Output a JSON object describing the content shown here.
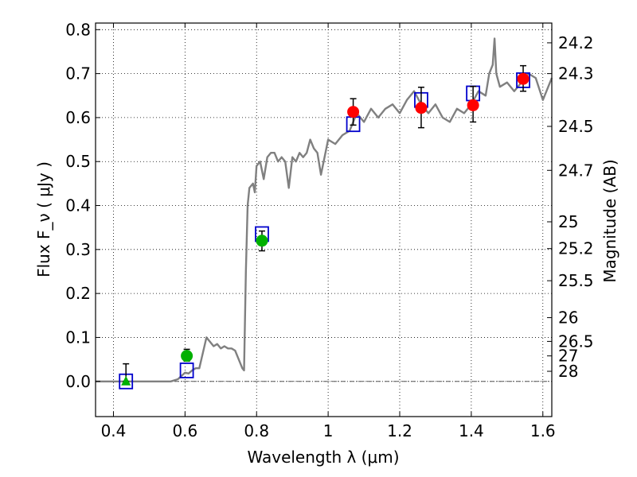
{
  "chart_data": {
    "type": "scatter",
    "xlabel": "Wavelength  λ (μm)",
    "ylabel": "Flux  F_ν  ( μJy )",
    "ylabel_right": "Magnitude (AB)",
    "xlim": [
      0.35,
      1.625
    ],
    "ylim": [
      -0.08,
      0.815
    ],
    "grid": true,
    "x_ticks": [
      0.4,
      0.6,
      0.8,
      1.0,
      1.2,
      1.4,
      1.6
    ],
    "x_tick_labels": [
      "0.4",
      "0.6",
      "0.8",
      "1",
      "1.2",
      "1.4",
      "1.6"
    ],
    "y_ticks": [
      0.0,
      0.1,
      0.2,
      0.3,
      0.4,
      0.5,
      0.6,
      0.7,
      0.8
    ],
    "y_tick_labels": [
      "0.0",
      "0.1",
      "0.2",
      "0.3",
      "0.4",
      "0.5",
      "0.6",
      "0.7",
      "0.8"
    ],
    "right_ticks": [
      {
        "label": "24.2",
        "flux": 0.77
      },
      {
        "label": "24.3",
        "flux": 0.7
      },
      {
        "label": "24.5",
        "flux": 0.58
      },
      {
        "label": "24.7",
        "flux": 0.48
      },
      {
        "label": "25",
        "flux": 0.363
      },
      {
        "label": "25.2",
        "flux": 0.302
      },
      {
        "label": "25.5",
        "flux": 0.229
      },
      {
        "label": "26",
        "flux": 0.145
      },
      {
        "label": "26.5",
        "flux": 0.091
      },
      {
        "label": "27",
        "flux": 0.058
      },
      {
        "label": "28",
        "flux": 0.023
      }
    ],
    "series": [
      {
        "kind": "line",
        "color": "#808080",
        "points": [
          [
            0.35,
            0.0
          ],
          [
            0.56,
            0.0
          ],
          [
            0.58,
            0.005
          ],
          [
            0.6,
            0.02
          ],
          [
            0.61,
            0.018
          ],
          [
            0.62,
            0.025
          ],
          [
            0.63,
            0.03
          ],
          [
            0.64,
            0.03
          ],
          [
            0.65,
            0.065
          ],
          [
            0.66,
            0.1
          ],
          [
            0.67,
            0.09
          ],
          [
            0.68,
            0.08
          ],
          [
            0.69,
            0.085
          ],
          [
            0.7,
            0.075
          ],
          [
            0.71,
            0.08
          ],
          [
            0.72,
            0.075
          ],
          [
            0.73,
            0.075
          ],
          [
            0.74,
            0.07
          ],
          [
            0.75,
            0.05
          ],
          [
            0.76,
            0.03
          ],
          [
            0.765,
            0.025
          ],
          [
            0.77,
            0.25
          ],
          [
            0.775,
            0.4
          ],
          [
            0.78,
            0.44
          ],
          [
            0.79,
            0.45
          ],
          [
            0.795,
            0.43
          ],
          [
            0.8,
            0.49
          ],
          [
            0.81,
            0.5
          ],
          [
            0.82,
            0.46
          ],
          [
            0.83,
            0.51
          ],
          [
            0.84,
            0.52
          ],
          [
            0.85,
            0.52
          ],
          [
            0.86,
            0.5
          ],
          [
            0.87,
            0.51
          ],
          [
            0.88,
            0.5
          ],
          [
            0.89,
            0.44
          ],
          [
            0.9,
            0.51
          ],
          [
            0.91,
            0.5
          ],
          [
            0.92,
            0.52
          ],
          [
            0.93,
            0.51
          ],
          [
            0.94,
            0.52
          ],
          [
            0.95,
            0.55
          ],
          [
            0.96,
            0.53
          ],
          [
            0.97,
            0.52
          ],
          [
            0.98,
            0.47
          ],
          [
            0.99,
            0.51
          ],
          [
            1.0,
            0.55
          ],
          [
            1.02,
            0.54
          ],
          [
            1.04,
            0.56
          ],
          [
            1.06,
            0.57
          ],
          [
            1.07,
            0.59
          ],
          [
            1.08,
            0.61
          ],
          [
            1.1,
            0.59
          ],
          [
            1.12,
            0.62
          ],
          [
            1.14,
            0.6
          ],
          [
            1.16,
            0.62
          ],
          [
            1.18,
            0.63
          ],
          [
            1.2,
            0.61
          ],
          [
            1.22,
            0.64
          ],
          [
            1.24,
            0.66
          ],
          [
            1.26,
            0.63
          ],
          [
            1.28,
            0.61
          ],
          [
            1.3,
            0.63
          ],
          [
            1.32,
            0.6
          ],
          [
            1.34,
            0.59
          ],
          [
            1.36,
            0.62
          ],
          [
            1.38,
            0.61
          ],
          [
            1.4,
            0.63
          ],
          [
            1.42,
            0.66
          ],
          [
            1.44,
            0.65
          ],
          [
            1.45,
            0.7
          ],
          [
            1.46,
            0.72
          ],
          [
            1.465,
            0.78
          ],
          [
            1.47,
            0.7
          ],
          [
            1.48,
            0.67
          ],
          [
            1.5,
            0.68
          ],
          [
            1.52,
            0.66
          ],
          [
            1.54,
            0.68
          ],
          [
            1.56,
            0.7
          ],
          [
            1.58,
            0.69
          ],
          [
            1.6,
            0.64
          ],
          [
            1.625,
            0.69
          ]
        ]
      },
      {
        "kind": "open-square",
        "color": "#0000cc",
        "points": [
          [
            0.435,
            0.0
          ],
          [
            0.605,
            0.025
          ],
          [
            0.815,
            0.335
          ],
          [
            1.07,
            0.585
          ],
          [
            1.26,
            0.64
          ],
          [
            1.405,
            0.655
          ],
          [
            1.545,
            0.685
          ]
        ]
      },
      {
        "kind": "green-triangle",
        "color": "#00b000",
        "points": [
          [
            0.435,
            0.0
          ]
        ],
        "err_low": [
          0.0
        ],
        "err_high": [
          0.04
        ]
      },
      {
        "kind": "green-circle",
        "color": "#00b000",
        "points": [
          [
            0.605,
            0.058
          ],
          [
            0.815,
            0.32
          ]
        ],
        "err_low": [
          0.012,
          0.023
        ],
        "err_high": [
          0.015,
          0.022
        ]
      },
      {
        "kind": "red-circle",
        "color": "#ff0000",
        "points": [
          [
            1.07,
            0.613
          ],
          [
            1.26,
            0.622
          ],
          [
            1.405,
            0.628
          ],
          [
            1.545,
            0.688
          ]
        ],
        "err_low": [
          0.03,
          0.045,
          0.038,
          0.028
        ],
        "err_high": [
          0.03,
          0.047,
          0.043,
          0.03
        ]
      }
    ]
  }
}
